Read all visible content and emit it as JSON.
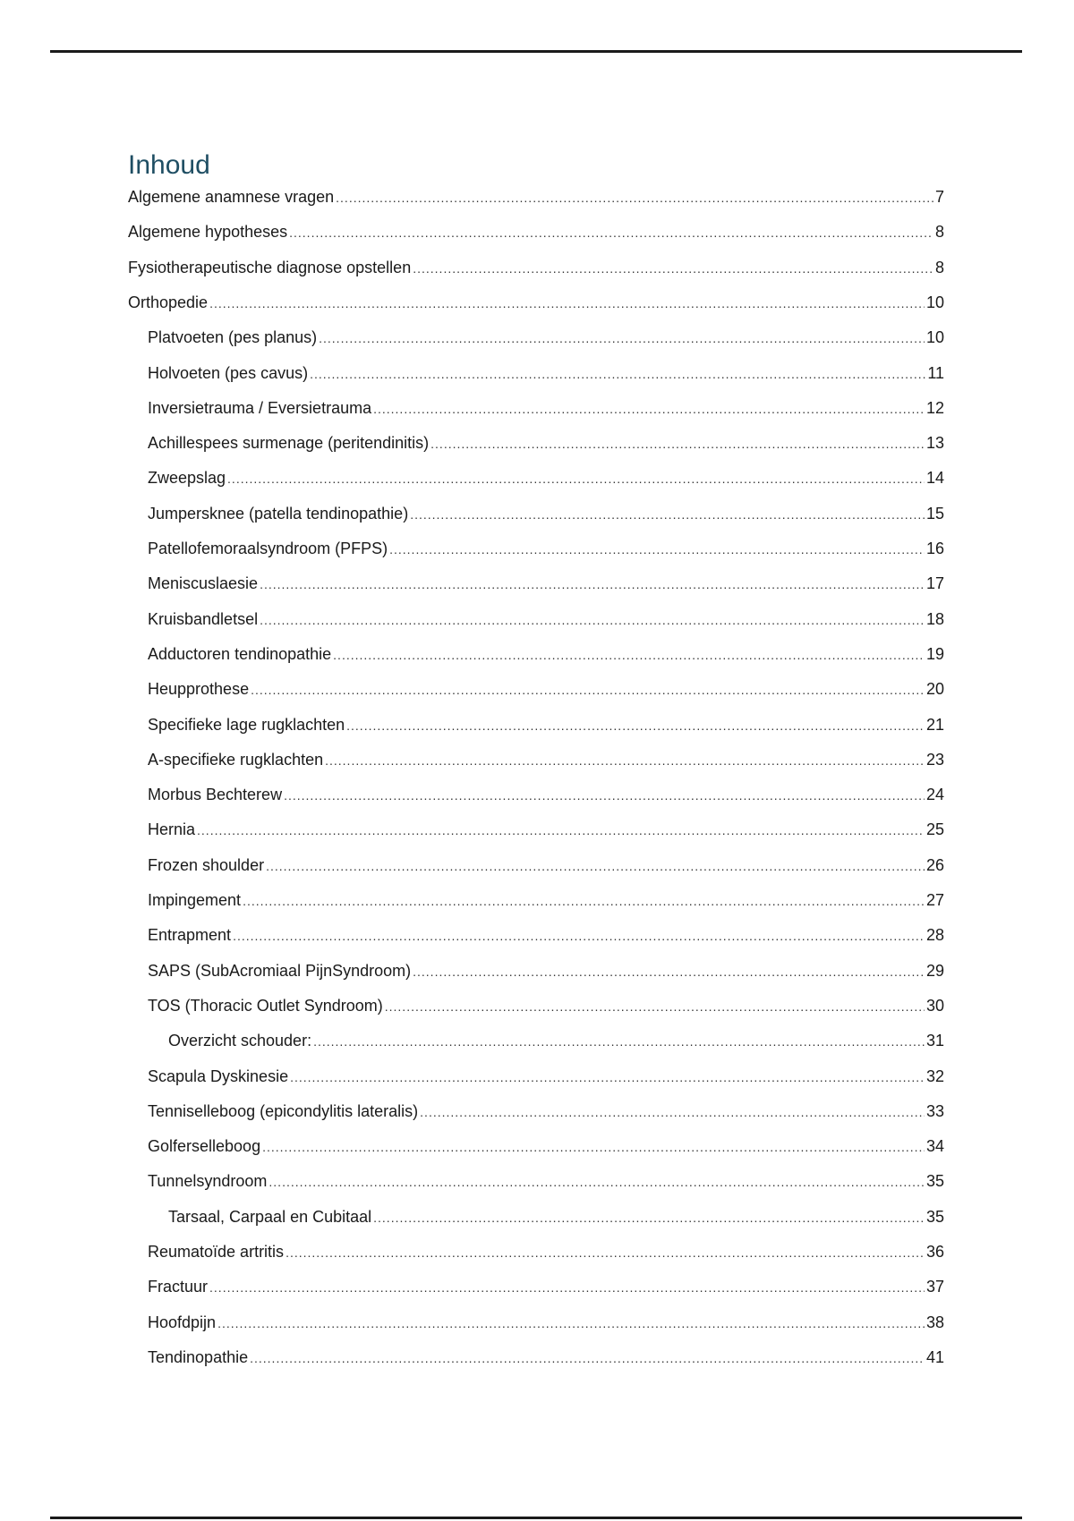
{
  "toc": {
    "title": "Inhoud",
    "entries": [
      {
        "label": "Algemene anamnese vragen",
        "page": "7",
        "level": 1
      },
      {
        "label": "Algemene hypotheses",
        "page": "8",
        "level": 1
      },
      {
        "label": "Fysiotherapeutische diagnose opstellen",
        "page": "8",
        "level": 1
      },
      {
        "label": "Orthopedie",
        "page": "10",
        "level": 1
      },
      {
        "label": "Platvoeten (pes planus)",
        "page": "10",
        "level": 2
      },
      {
        "label": "Holvoeten (pes cavus)",
        "page": "11",
        "level": 2
      },
      {
        "label": "Inversietrauma / Eversietrauma",
        "page": "12",
        "level": 2
      },
      {
        "label": "Achillespees surmenage (peritendinitis)",
        "page": "13",
        "level": 2
      },
      {
        "label": "Zweepslag",
        "page": "14",
        "level": 2
      },
      {
        "label": "Jumpersknee (patella tendinopathie)",
        "page": "15",
        "level": 2
      },
      {
        "label": "Patellofemoraalsyndroom (PFPS)",
        "page": "16",
        "level": 2
      },
      {
        "label": "Meniscuslaesie",
        "page": "17",
        "level": 2
      },
      {
        "label": "Kruisbandletsel",
        "page": "18",
        "level": 2
      },
      {
        "label": "Adductoren tendinopathie",
        "page": "19",
        "level": 2
      },
      {
        "label": "Heupprothese",
        "page": "20",
        "level": 2
      },
      {
        "label": "Specifieke lage rugklachten",
        "page": "21",
        "level": 2
      },
      {
        "label": "A-specifieke rugklachten",
        "page": "23",
        "level": 2
      },
      {
        "label": "Morbus Bechterew",
        "page": "24",
        "level": 2
      },
      {
        "label": "Hernia",
        "page": "25",
        "level": 2
      },
      {
        "label": "Frozen shoulder",
        "page": "26",
        "level": 2
      },
      {
        "label": "Impingement",
        "page": "27",
        "level": 2
      },
      {
        "label": "Entrapment",
        "page": "28",
        "level": 2
      },
      {
        "label": "SAPS (SubAcromiaal PijnSyndroom)",
        "page": "29",
        "level": 2
      },
      {
        "label": "TOS (Thoracic Outlet Syndroom)",
        "page": "30",
        "level": 2
      },
      {
        "label": "Overzicht schouder:",
        "page": "31",
        "level": 3
      },
      {
        "label": "Scapula Dyskinesie",
        "page": "32",
        "level": 2
      },
      {
        "label": "Tenniselleboog (epicondylitis lateralis)",
        "page": "33",
        "level": 2
      },
      {
        "label": "Golferselleboog",
        "page": "34",
        "level": 2
      },
      {
        "label": "Tunnelsyndroom",
        "page": "35",
        "level": 2
      },
      {
        "label": "Tarsaal, Carpaal en Cubitaal",
        "page": "35",
        "level": 3
      },
      {
        "label": "Reumatoïde artritis",
        "page": "36",
        "level": 2
      },
      {
        "label": "Fractuur",
        "page": "37",
        "level": 2
      },
      {
        "label": "Hoofdpijn",
        "page": "38",
        "level": 2
      },
      {
        "label": "Tendinopathie",
        "page": "41",
        "level": 2
      }
    ]
  }
}
